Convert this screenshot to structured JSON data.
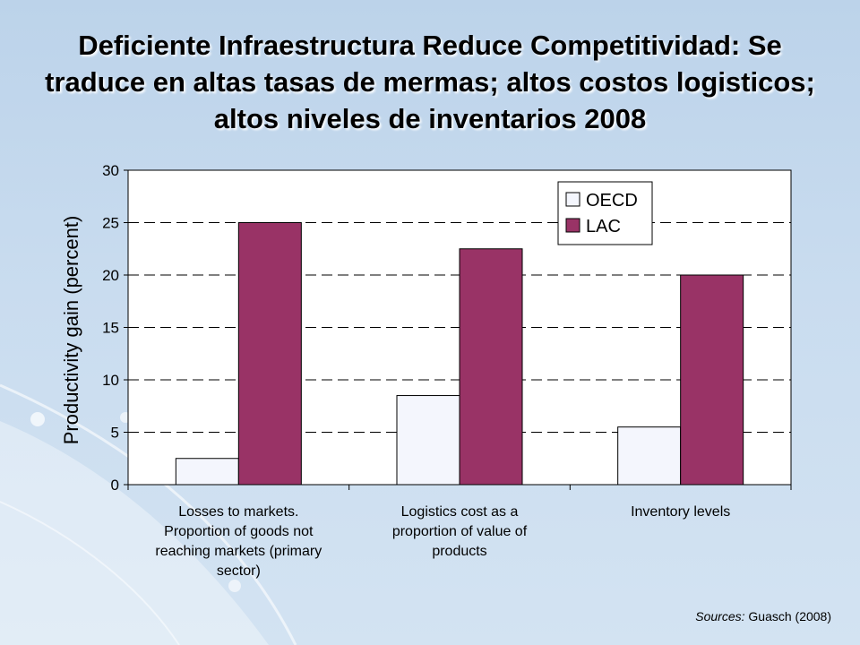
{
  "slide": {
    "title": "Deficiente Infraestructura Reduce Competitividad: Se traduce en altas tasas de mermas; altos costos logisticos; altos niveles de inventarios  2008",
    "source_label": "Sources:",
    "source_text": " Guasch (2008)"
  },
  "colors": {
    "oecd": "#f4f6fd",
    "lac": "#993366",
    "plot_bg": "#ffffff"
  },
  "chart_data": {
    "type": "bar",
    "ylabel": "Productivity gain (percent)",
    "xlabel": "",
    "ylim": [
      0,
      30
    ],
    "yticks": [
      0,
      5,
      10,
      15,
      20,
      25,
      30
    ],
    "grid": true,
    "legend_position": "top-right",
    "categories": [
      [
        "Losses to markets.",
        "Proportion of goods not",
        "reaching markets (primary",
        "sector)"
      ],
      [
        "Logistics cost as a",
        "proportion of value of",
        "products"
      ],
      [
        "Inventory levels"
      ]
    ],
    "series": [
      {
        "name": "OECD",
        "values": [
          2.5,
          8.5,
          5.5
        ]
      },
      {
        "name": "LAC",
        "values": [
          25,
          22.5,
          20
        ]
      }
    ]
  }
}
